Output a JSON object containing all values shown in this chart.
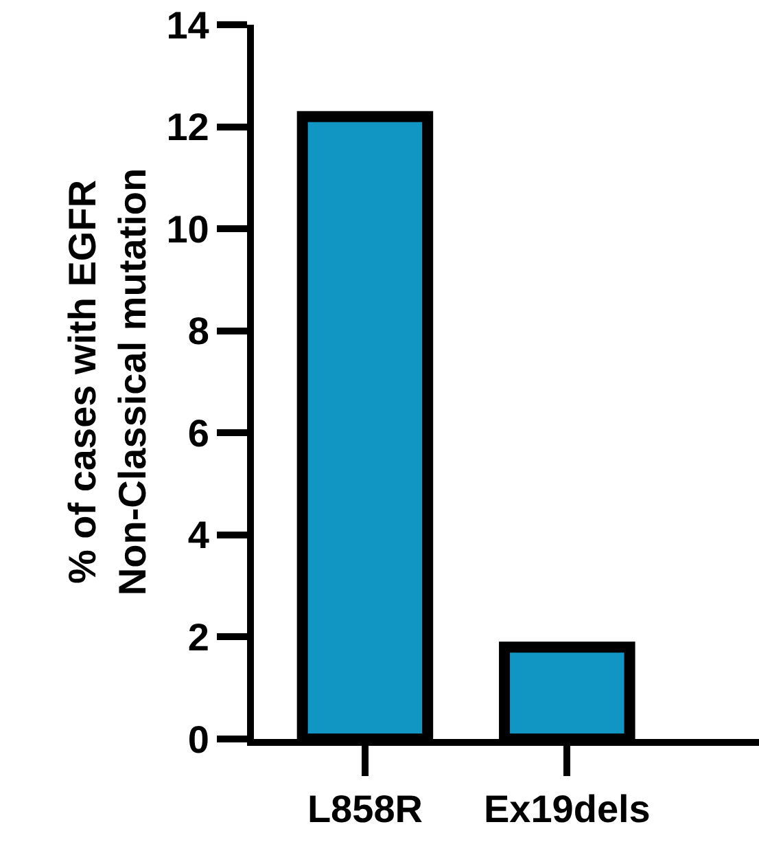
{
  "chart_data": {
    "type": "bar",
    "ylabel": "% of cases with EGFR\nNon-Classical mutation",
    "categories": [
      "L858R",
      "Ex19dels"
    ],
    "values": [
      12.2,
      1.8
    ],
    "color": "#1196c4",
    "ylim": [
      0,
      14
    ],
    "yticks": [
      0,
      2,
      4,
      6,
      8,
      10,
      12,
      14
    ]
  }
}
